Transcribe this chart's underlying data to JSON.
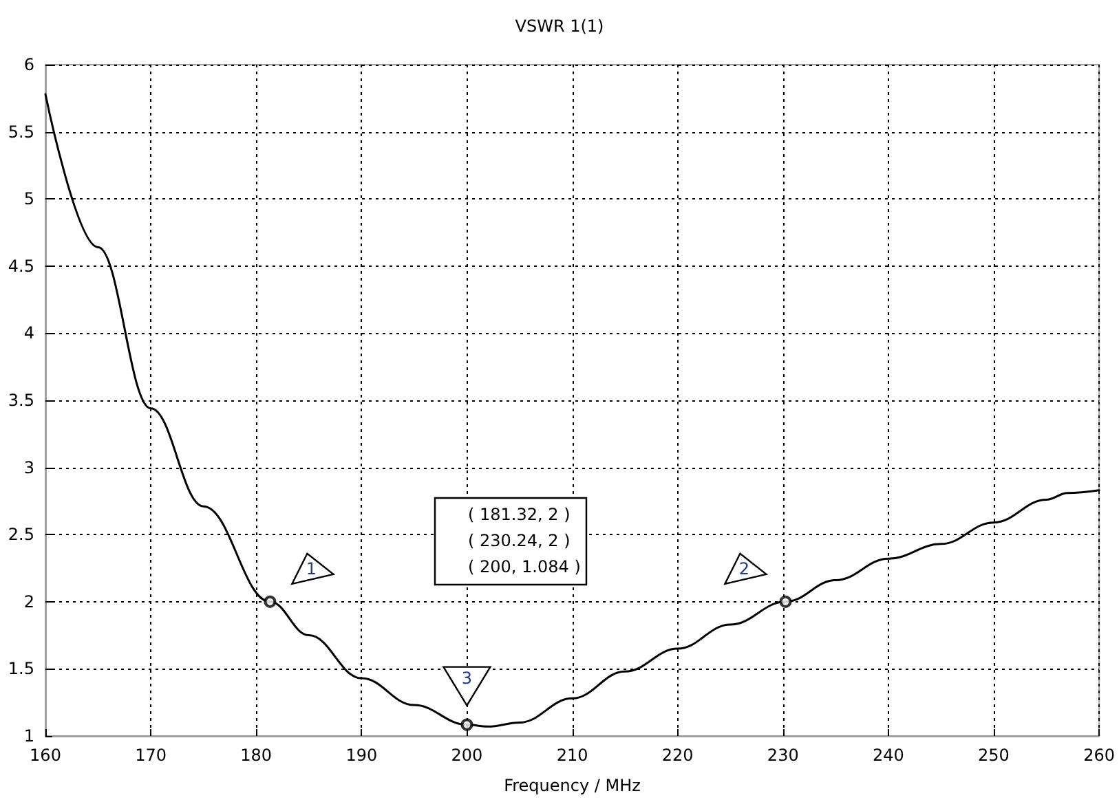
{
  "chart_data": {
    "type": "line",
    "title": "VSWR 1(1)",
    "xlabel": "Frequency / MHz",
    "x": [
      160,
      165,
      170,
      175,
      181.32,
      185,
      190,
      195,
      200,
      202,
      205,
      210,
      215,
      220,
      225,
      230.24,
      235,
      240,
      245,
      250,
      255,
      257,
      260
    ],
    "series": [
      {
        "color": "#000000",
        "values": [
          5.78,
          4.64,
          3.44,
          2.71,
          2,
          1.75,
          1.43,
          1.23,
          1.084,
          1.07,
          1.1,
          1.28,
          1.48,
          1.65,
          1.83,
          2,
          2.16,
          2.32,
          2.43,
          2.59,
          2.76,
          2.81,
          2.83
        ]
      }
    ],
    "xlim": [
      160,
      260
    ],
    "xticks": [
      160,
      170,
      180,
      190,
      200,
      210,
      220,
      230,
      240,
      250,
      260
    ],
    "ylim": [
      1,
      6
    ],
    "yticks": [
      1,
      1.5,
      2,
      2.5,
      3,
      3.5,
      4,
      4.5,
      5,
      5.5,
      6
    ],
    "grid": true,
    "marker": "none",
    "line_style": "solid",
    "annotations": [
      {
        "text": "1",
        "x": 181.32,
        "y": 2
      },
      {
        "text": "2",
        "x": 230.24,
        "y": 2
      },
      {
        "text": "3",
        "x": 200,
        "y": 1.084
      },
      "( 181.32, 2 )",
      "( 230.24, 2 )",
      "( 200, 1.084 )"
    ]
  }
}
